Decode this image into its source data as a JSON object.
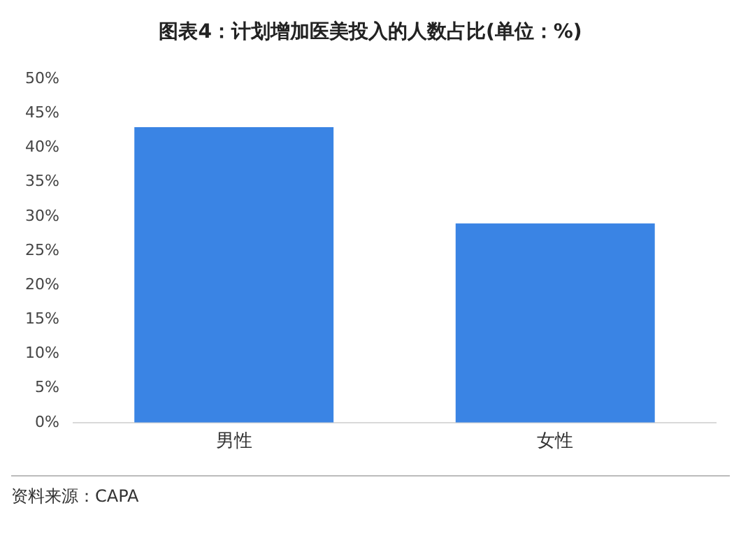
{
  "chart_data": {
    "type": "bar",
    "title": "图表4：计划增加医美投入的人数占比(单位：%)",
    "categories": [
      "男性",
      "女性"
    ],
    "values": [
      43,
      29
    ],
    "color": "#3a84e4",
    "ylim": [
      0,
      50
    ],
    "yticks": [
      {
        "value": 0,
        "label": "0%"
      },
      {
        "value": 5,
        "label": "5%"
      },
      {
        "value": 10,
        "label": "10%"
      },
      {
        "value": 15,
        "label": "15%"
      },
      {
        "value": 20,
        "label": "20%"
      },
      {
        "value": 25,
        "label": "25%"
      },
      {
        "value": 30,
        "label": "30%"
      },
      {
        "value": 35,
        "label": "35%"
      },
      {
        "value": 40,
        "label": "40%"
      },
      {
        "value": 45,
        "label": "45%"
      },
      {
        "value": 50,
        "label": "50%"
      }
    ],
    "grid": false,
    "legend": false,
    "annotations": [
      "资料来源：CAPA"
    ]
  }
}
